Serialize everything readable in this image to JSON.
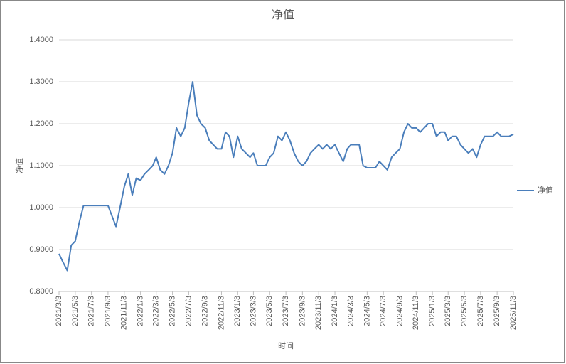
{
  "chart_data": {
    "type": "line",
    "title": "净值",
    "y_label": "净值",
    "x_label": "时间",
    "x": [
      "2021/3/3",
      "2021/3/18",
      "2021/4/3",
      "2021/4/18",
      "2021/5/3",
      "2021/5/18",
      "2021/6/3",
      "2021/6/18",
      "2021/7/3",
      "2021/7/18",
      "2021/8/3",
      "2021/8/18",
      "2021/9/3",
      "2021/9/18",
      "2021/10/3",
      "2021/10/18",
      "2021/11/3",
      "2021/11/18",
      "2021/12/3",
      "2021/12/18",
      "2022/1/3",
      "2022/1/18",
      "2022/2/3",
      "2022/2/18",
      "2022/3/3",
      "2022/3/18",
      "2022/4/3",
      "2022/4/18",
      "2022/5/3",
      "2022/5/18",
      "2022/6/3",
      "2022/6/18",
      "2022/7/3",
      "2022/7/18",
      "2022/8/3",
      "2022/8/18",
      "2022/9/3",
      "2022/9/18",
      "2022/10/3",
      "2022/10/18",
      "2022/11/3",
      "2022/11/18",
      "2022/12/3",
      "2022/12/18",
      "2023/1/3",
      "2023/1/18",
      "2023/2/3",
      "2023/2/18",
      "2023/3/3",
      "2023/3/18",
      "2023/4/3",
      "2023/4/18",
      "2023/5/3",
      "2023/5/18",
      "2023/6/3",
      "2023/6/18",
      "2023/7/3",
      "2023/7/18",
      "2023/8/3",
      "2023/8/18",
      "2023/9/3",
      "2023/9/18",
      "2023/10/3",
      "2023/10/18",
      "2023/11/3",
      "2023/11/18",
      "2023/12/3",
      "2023/12/18",
      "2024/1/3",
      "2024/1/18",
      "2024/2/3",
      "2024/2/18",
      "2024/3/3",
      "2024/3/18",
      "2024/4/3",
      "2024/4/18",
      "2024/5/3",
      "2024/5/18",
      "2024/6/3",
      "2024/6/18",
      "2024/7/3",
      "2024/7/18",
      "2024/8/3",
      "2024/8/18",
      "2024/9/3",
      "2024/9/18",
      "2024/10/3",
      "2024/10/18",
      "2024/11/3",
      "2024/11/18",
      "2024/12/3",
      "2024/12/18",
      "2025/1/3",
      "2025/1/18",
      "2025/2/3",
      "2025/2/18",
      "2025/3/3",
      "2025/3/18",
      "2025/4/3",
      "2025/4/18",
      "2025/5/3",
      "2025/5/18",
      "2025/6/3",
      "2025/6/18",
      "2025/7/3",
      "2025/7/18",
      "2025/8/3",
      "2025/8/18",
      "2025/9/3",
      "2025/9/18",
      "2025/10/3",
      "2025/10/18",
      "2025/11/3"
    ],
    "series": [
      {
        "name": "净值",
        "color": "#4a7ebb",
        "values": [
          0.89,
          0.87,
          0.85,
          0.91,
          0.92,
          0.965,
          1.005,
          1.005,
          1.005,
          1.005,
          1.005,
          1.005,
          1.005,
          0.98,
          0.955,
          1.0,
          1.05,
          1.08,
          1.03,
          1.07,
          1.065,
          1.08,
          1.09,
          1.1,
          1.12,
          1.09,
          1.08,
          1.1,
          1.13,
          1.19,
          1.17,
          1.19,
          1.25,
          1.3,
          1.22,
          1.2,
          1.19,
          1.16,
          1.15,
          1.14,
          1.14,
          1.18,
          1.17,
          1.12,
          1.17,
          1.14,
          1.13,
          1.12,
          1.13,
          1.1,
          1.1,
          1.1,
          1.12,
          1.13,
          1.17,
          1.16,
          1.18,
          1.16,
          1.13,
          1.11,
          1.1,
          1.11,
          1.13,
          1.14,
          1.15,
          1.14,
          1.15,
          1.14,
          1.15,
          1.13,
          1.11,
          1.14,
          1.15,
          1.15,
          1.15,
          1.1,
          1.095,
          1.095,
          1.095,
          1.11,
          1.1,
          1.09,
          1.12,
          1.13,
          1.14,
          1.18,
          1.2,
          1.19,
          1.19,
          1.18,
          1.19,
          1.2,
          1.2,
          1.17,
          1.18,
          1.18,
          1.16,
          1.17,
          1.17,
          1.15,
          1.14,
          1.13,
          1.14,
          1.12,
          1.15,
          1.17,
          1.17,
          1.17,
          1.18,
          1.17,
          1.17,
          1.17,
          1.175
        ]
      }
    ],
    "xlim": [
      "2021/3/3",
      "2025/11/3"
    ],
    "xticks": [
      "2021/3/3",
      "2021/5/3",
      "2021/7/3",
      "2021/9/3",
      "2021/11/3",
      "2022/1/3",
      "2022/3/3",
      "2022/5/3",
      "2022/7/3",
      "2022/9/3",
      "2022/11/3",
      "2023/1/3",
      "2023/3/3",
      "2023/5/3",
      "2023/7/3",
      "2023/9/3",
      "2023/11/3",
      "2024/1/3",
      "2024/3/3",
      "2024/5/3",
      "2024/7/3",
      "2024/9/3",
      "2024/11/3",
      "2025/1/3",
      "2025/3/3",
      "2025/5/3",
      "2025/7/3",
      "2025/9/3",
      "2025/11/3"
    ],
    "ylim": [
      0.8,
      1.4
    ],
    "yticks": [
      {
        "value": 0.8,
        "label": "0.8000"
      },
      {
        "value": 0.9,
        "label": "0.9000"
      },
      {
        "value": 1.0,
        "label": "1.0000"
      },
      {
        "value": 1.1,
        "label": "1.1000"
      },
      {
        "value": 1.2,
        "label": "1.2000"
      },
      {
        "value": 1.3,
        "label": "1.3000"
      },
      {
        "value": 1.4,
        "label": "1.4000"
      }
    ],
    "grid": true,
    "legend": "right"
  }
}
